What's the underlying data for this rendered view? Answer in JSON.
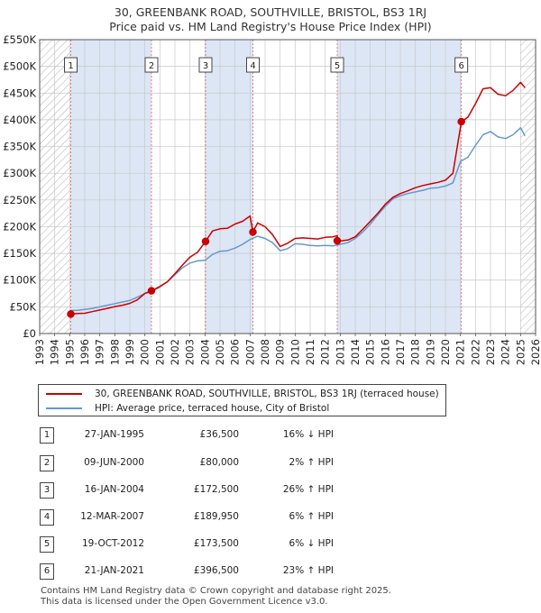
{
  "title_line1": "30, GREENBANK ROAD, SOUTHVILLE, BRISTOL, BS3 1RJ",
  "title_line2": "Price paid vs. HM Land Registry's House Price Index (HPI)",
  "legend": {
    "property_label": "30, GREENBANK ROAD, SOUTHVILLE, BRISTOL, BS3 1RJ (terraced house)",
    "hpi_label": "HPI: Average price, terraced house, City of Bristol"
  },
  "colors": {
    "property": "#cc0000",
    "hpi": "#6699cc",
    "shade": "#dde6f5",
    "grid": "#c8c8c8",
    "marker_line": "#e08080"
  },
  "sales": [
    {
      "num": "1",
      "date": "27-JAN-1995",
      "price": "£36,500",
      "hpi": "16% ↓ HPI"
    },
    {
      "num": "2",
      "date": "09-JUN-2000",
      "price": "£80,000",
      "hpi": "2% ↑ HPI"
    },
    {
      "num": "3",
      "date": "16-JAN-2004",
      "price": "£172,500",
      "hpi": "26% ↑ HPI"
    },
    {
      "num": "4",
      "date": "12-MAR-2007",
      "price": "£189,950",
      "hpi": "6% ↑ HPI"
    },
    {
      "num": "5",
      "date": "19-OCT-2012",
      "price": "£173,500",
      "hpi": "6% ↓ HPI"
    },
    {
      "num": "6",
      "date": "21-JAN-2021",
      "price": "£396,500",
      "hpi": "23% ↑ HPI"
    }
  ],
  "footer_line1": "Contains HM Land Registry data © Crown copyright and database right 2025.",
  "footer_line2": "This data is licensed under the Open Government Licence v3.0.",
  "chart_data": {
    "type": "line",
    "title": "30, GREENBANK ROAD, SOUTHVILLE, BRISTOL, BS3 1RJ — Price paid vs. HM Land Registry's House Price Index (HPI)",
    "xlabel": "",
    "ylabel": "",
    "xlim": [
      1993,
      2026
    ],
    "ylim": [
      0,
      550000
    ],
    "x_ticks": [
      "1993",
      "1994",
      "1995",
      "1996",
      "1997",
      "1998",
      "1999",
      "2000",
      "2001",
      "2002",
      "2003",
      "2004",
      "2005",
      "2006",
      "2007",
      "2008",
      "2009",
      "2010",
      "2011",
      "2012",
      "2013",
      "2014",
      "2015",
      "2016",
      "2017",
      "2018",
      "2019",
      "2020",
      "2021",
      "2022",
      "2023",
      "2024",
      "2025",
      "2026"
    ],
    "y_ticks": [
      {
        "value": 0,
        "label": "£0"
      },
      {
        "value": 50000,
        "label": "£50K"
      },
      {
        "value": 100000,
        "label": "£100K"
      },
      {
        "value": 150000,
        "label": "£150K"
      },
      {
        "value": 200000,
        "label": "£200K"
      },
      {
        "value": 250000,
        "label": "£250K"
      },
      {
        "value": 300000,
        "label": "£300K"
      },
      {
        "value": 350000,
        "label": "£350K"
      },
      {
        "value": 400000,
        "label": "£400K"
      },
      {
        "value": 450000,
        "label": "£450K"
      },
      {
        "value": 500000,
        "label": "£500K"
      },
      {
        "value": 550000,
        "label": "£550K"
      }
    ],
    "grid": true,
    "hatched_ranges": [
      [
        1993,
        1995.07
      ],
      [
        2025.0,
        2026
      ]
    ],
    "shaded_ranges": [
      [
        1995.07,
        2000.44
      ],
      [
        2004.04,
        2007.19
      ],
      [
        2012.8,
        2021.06
      ]
    ],
    "sale_points": [
      {
        "label": "1",
        "x": 1995.07,
        "y": 36500
      },
      {
        "label": "2",
        "x": 2000.44,
        "y": 80000
      },
      {
        "label": "3",
        "x": 2004.04,
        "y": 172500
      },
      {
        "label": "4",
        "x": 2007.19,
        "y": 189950
      },
      {
        "label": "5",
        "x": 2012.8,
        "y": 173500
      },
      {
        "label": "6",
        "x": 2021.06,
        "y": 396500
      }
    ],
    "series": [
      {
        "name": "30, GREENBANK ROAD, SOUTHVILLE, BRISTOL, BS3 1RJ (terraced house)",
        "color": "#cc0000",
        "x": [
          1995.07,
          1995.5,
          1996,
          1996.5,
          1997,
          1997.5,
          1998,
          1998.5,
          1999,
          1999.5,
          2000,
          2000.44,
          2000.44,
          2001,
          2001.5,
          2002,
          2002.5,
          2003,
          2003.5,
          2004.04,
          2004.04,
          2004.5,
          2005,
          2005.5,
          2006,
          2006.5,
          2007,
          2007.19,
          2007.19,
          2007.5,
          2008,
          2008.5,
          2009,
          2009.5,
          2010,
          2010.5,
          2011,
          2011.5,
          2012,
          2012.5,
          2012.8,
          2012.8,
          2013,
          2013.5,
          2014,
          2014.5,
          2015,
          2015.5,
          2016,
          2016.5,
          2017,
          2017.5,
          2018,
          2018.5,
          2019,
          2019.5,
          2020,
          2020.5,
          2021.06,
          2021.06,
          2021.5,
          2022,
          2022.5,
          2023,
          2023.5,
          2024,
          2024.5,
          2025,
          2025.3
        ],
        "y": [
          36500,
          37500,
          38000,
          41000,
          44000,
          47000,
          50500,
          53000,
          56500,
          63000,
          75000,
          80000,
          80000,
          88000,
          97000,
          112000,
          128000,
          143000,
          152000,
          172500,
          172500,
          192000,
          196000,
          197000,
          205000,
          210000,
          220000,
          189950,
          189950,
          207000,
          200000,
          185000,
          163000,
          169000,
          178000,
          179000,
          178000,
          177000,
          180000,
          181000,
          183000,
          173500,
          173500,
          175000,
          181000,
          195000,
          210000,
          225000,
          242000,
          255000,
          262000,
          267000,
          273000,
          277000,
          280000,
          283000,
          287000,
          300000,
          396500,
          396500,
          405000,
          430000,
          458000,
          460000,
          448000,
          445000,
          455000,
          470000,
          460000
        ]
      },
      {
        "name": "HPI: Average price, terraced house, City of Bristol",
        "color": "#6699cc",
        "x": [
          1995,
          1995.5,
          1996,
          1996.5,
          1997,
          1997.5,
          1998,
          1998.5,
          1999,
          1999.5,
          2000,
          2000.5,
          2001,
          2001.5,
          2002,
          2002.5,
          2003,
          2003.5,
          2004,
          2004.5,
          2005,
          2005.5,
          2006,
          2006.5,
          2007,
          2007.5,
          2008,
          2008.5,
          2009,
          2009.5,
          2010,
          2010.5,
          2011,
          2011.5,
          2012,
          2012.5,
          2013,
          2013.5,
          2014,
          2014.5,
          2015,
          2015.5,
          2016,
          2016.5,
          2017,
          2017.5,
          2018,
          2018.5,
          2019,
          2019.5,
          2020,
          2020.5,
          2021,
          2021.5,
          2022,
          2022.5,
          2023,
          2023.5,
          2024,
          2024.5,
          2025,
          2025.3
        ],
        "y": [
          43000,
          43500,
          45000,
          47000,
          50000,
          53000,
          56000,
          59000,
          62000,
          68000,
          75000,
          80000,
          87000,
          97000,
          110000,
          123000,
          132000,
          136000,
          137000,
          148000,
          154000,
          155000,
          160000,
          167000,
          176000,
          182000,
          178000,
          170000,
          155000,
          159000,
          168000,
          167000,
          165000,
          164000,
          165000,
          164000,
          167000,
          170000,
          178000,
          190000,
          205000,
          222000,
          238000,
          252000,
          258000,
          262000,
          265000,
          268000,
          272000,
          273000,
          276000,
          282000,
          322000,
          330000,
          352000,
          372000,
          378000,
          368000,
          365000,
          372000,
          385000,
          370000
        ]
      }
    ]
  }
}
